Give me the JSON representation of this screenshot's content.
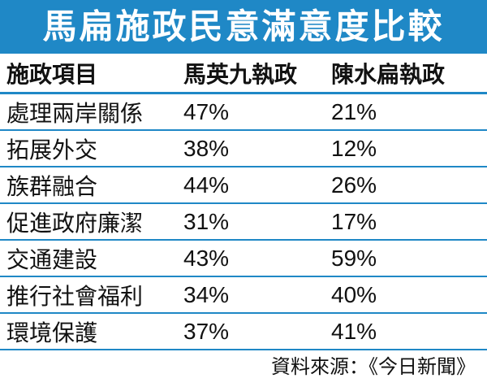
{
  "chart_data": {
    "type": "table",
    "title": "馬扁施政民意滿意度比較",
    "columns": [
      "施政項目",
      "馬英九執政",
      "陳水扁執政"
    ],
    "rows": [
      {
        "item": "處理兩岸關係",
        "ma": "47%",
        "chen": "21%"
      },
      {
        "item": "拓展外交",
        "ma": "38%",
        "chen": "12%"
      },
      {
        "item": "族群融合",
        "ma": "44%",
        "chen": "26%"
      },
      {
        "item": "促進政府廉潔",
        "ma": "31%",
        "chen": "17%"
      },
      {
        "item": "交通建設",
        "ma": "43%",
        "chen": "59%"
      },
      {
        "item": "推行社會福利",
        "ma": "34%",
        "chen": "40%"
      },
      {
        "item": "環境保護",
        "ma": "37%",
        "chen": "41%"
      }
    ],
    "source": "資料來源：《今日新聞》"
  },
  "colors": {
    "title_background": "#1f88c6",
    "title_text": "#ffffff",
    "row_divider": "#1f88c6"
  }
}
